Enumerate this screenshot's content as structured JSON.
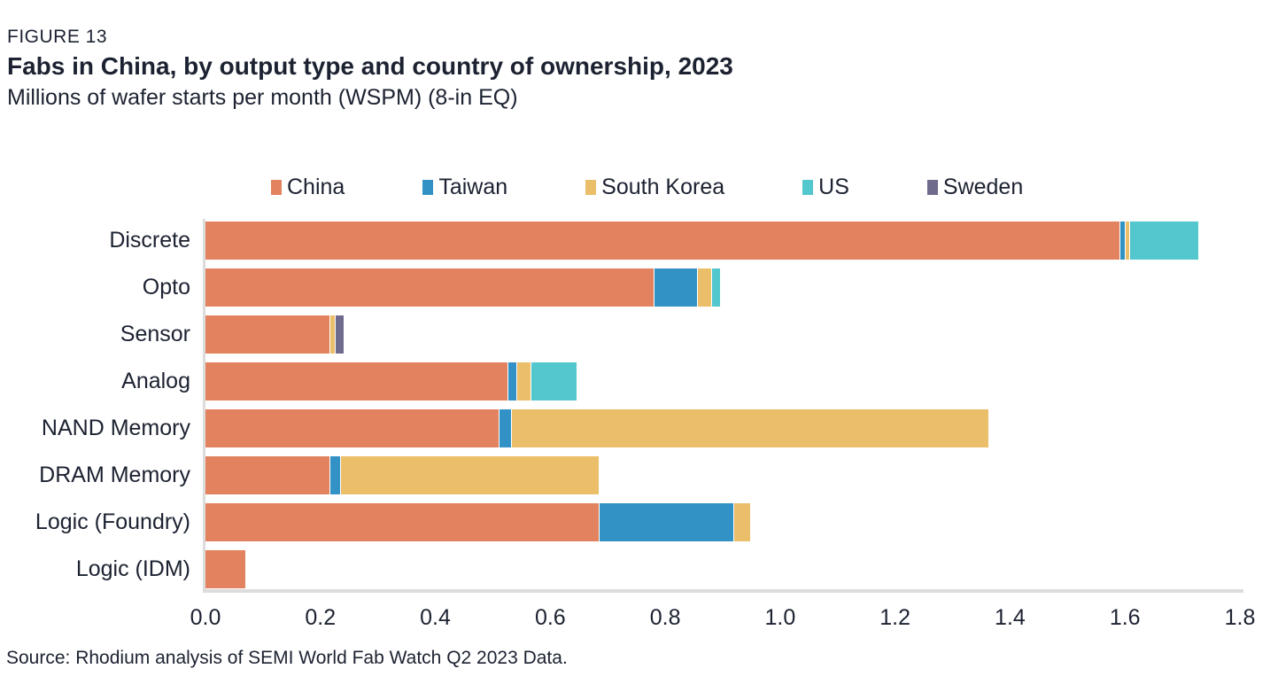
{
  "figure_label": "FIGURE 13",
  "title": "Fabs in China, by output type and country of ownership, 2023",
  "subtitle": "Millions of wafer starts per month (WSPM) (8-in EQ)",
  "source": "Source: Rhodium analysis of SEMI World Fab Watch Q2 2023 Data.",
  "colors": {
    "china": "#E2825F",
    "taiwan": "#3392C5",
    "south_korea": "#EBBE6A",
    "us": "#53C7CE",
    "sweden": "#6E6B8C",
    "axis": "#DCDCDC",
    "text": "#1C2231"
  },
  "chart_data": {
    "type": "bar",
    "orientation": "horizontal",
    "stacked": true,
    "title": "Fabs in China, by output type and country of ownership, 2023",
    "subtitle": "Millions of wafer starts per month (WSPM) (8-in EQ)",
    "xlabel": "",
    "ylabel": "",
    "xlim": [
      0,
      1.8
    ],
    "x_ticks": [
      "0.0",
      "0.2",
      "0.4",
      "0.6",
      "0.8",
      "1.0",
      "1.2",
      "1.4",
      "1.6",
      "1.8"
    ],
    "grid": false,
    "legend_position": "top",
    "categories": [
      "Discrete",
      "Opto",
      "Sensor",
      "Analog",
      "NAND Memory",
      "DRAM Memory",
      "Logic (Foundry)",
      "Logic (IDM)"
    ],
    "series": [
      {
        "name": "China",
        "color": "#E2825F",
        "values": [
          1.59,
          0.78,
          0.215,
          0.525,
          0.51,
          0.215,
          0.685,
          0.07
        ]
      },
      {
        "name": "Taiwan",
        "color": "#3392C5",
        "values": [
          0.01,
          0.075,
          0,
          0.015,
          0.022,
          0.018,
          0.235,
          0
        ]
      },
      {
        "name": "South Korea",
        "color": "#EBBE6A",
        "values": [
          0.008,
          0.025,
          0.01,
          0.025,
          0.83,
          0.45,
          0.03,
          0
        ]
      },
      {
        "name": "US",
        "color": "#53C7CE",
        "values": [
          0.12,
          0.015,
          0,
          0.08,
          0,
          0,
          0,
          0
        ]
      },
      {
        "name": "Sweden",
        "color": "#6E6B8C",
        "values": [
          0,
          0,
          0.015,
          0,
          0,
          0,
          0,
          0
        ]
      }
    ]
  }
}
